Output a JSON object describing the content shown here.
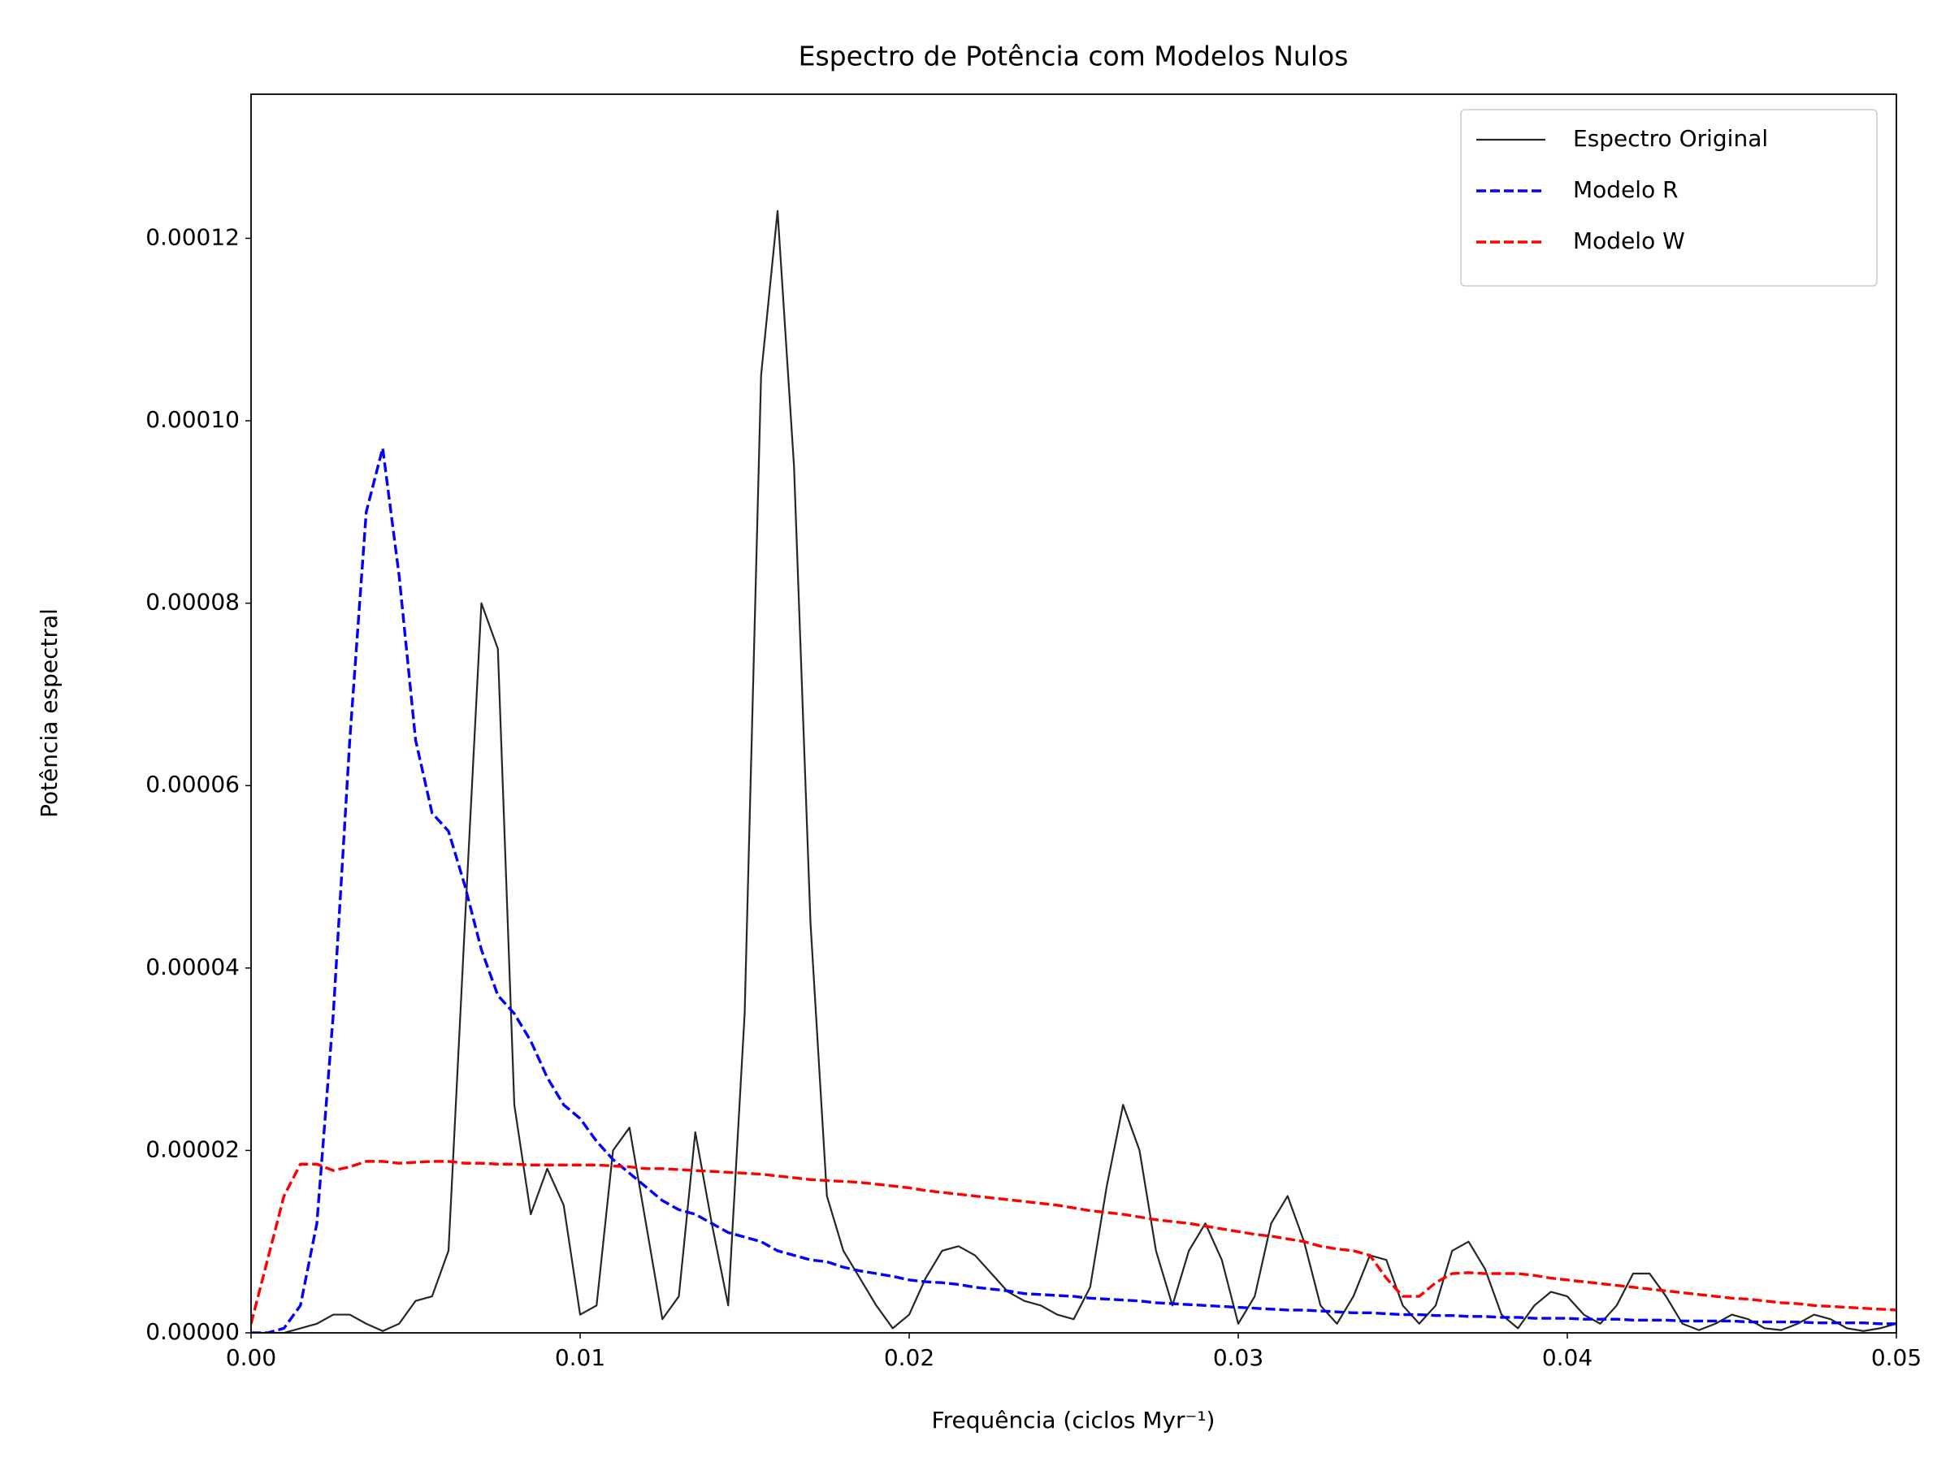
{
  "chart_data": {
    "type": "line",
    "title": "Espectro de Potência com Modelos Nulos",
    "x_label": "Frequência (ciclos Myr⁻¹)",
    "y_label": "Potência espectral",
    "x": [
      0,
      0.0005,
      0.001,
      0.0015,
      0.002,
      0.0025,
      0.003,
      0.0035,
      0.004,
      0.0045,
      0.005,
      0.0055,
      0.006,
      0.0065,
      0.007,
      0.0075,
      0.008,
      0.0085,
      0.009,
      0.0095,
      0.01,
      0.0105,
      0.011,
      0.0115,
      0.012,
      0.0125,
      0.013,
      0.0135,
      0.014,
      0.0145,
      0.015,
      0.0155,
      0.016,
      0.0165,
      0.017,
      0.0175,
      0.018,
      0.0185,
      0.019,
      0.0195,
      0.02,
      0.0205,
      0.021,
      0.0215,
      0.022,
      0.0225,
      0.023,
      0.0235,
      0.024,
      0.0245,
      0.025,
      0.0255,
      0.026,
      0.0265,
      0.027,
      0.0275,
      0.028,
      0.0285,
      0.029,
      0.0295,
      0.03,
      0.0305,
      0.031,
      0.0315,
      0.032,
      0.0325,
      0.033,
      0.0335,
      0.034,
      0.0345,
      0.035,
      0.0355,
      0.036,
      0.0365,
      0.037,
      0.0375,
      0.038,
      0.0385,
      0.039,
      0.0395,
      0.04,
      0.0405,
      0.041,
      0.0415,
      0.042,
      0.0425,
      0.043,
      0.0435,
      0.044,
      0.0445,
      0.045,
      0.0455,
      0.046,
      0.0465,
      0.047,
      0.0475,
      0.048,
      0.0485,
      0.049,
      0.0495,
      0.05
    ],
    "series": [
      {
        "name": "Espectro Original",
        "color": "#262626",
        "style": "solid",
        "values": [
          0,
          0,
          0,
          5e-07,
          1e-06,
          2e-06,
          2e-06,
          1e-06,
          2e-07,
          1e-06,
          3.5e-06,
          4e-06,
          9e-06,
          4.5e-05,
          8e-05,
          7.5e-05,
          2.5e-05,
          1.3e-05,
          1.8e-05,
          1.4e-05,
          2e-06,
          3e-06,
          2e-05,
          2.25e-05,
          1.2e-05,
          1.5e-06,
          4e-06,
          2.2e-05,
          1.2e-05,
          3e-06,
          3.5e-05,
          0.000105,
          0.000123,
          9.5e-05,
          4.5e-05,
          1.5e-05,
          9e-06,
          6e-06,
          3e-06,
          5e-07,
          2e-06,
          6e-06,
          9e-06,
          9.5e-06,
          8.5e-06,
          6.5e-06,
          4.5e-06,
          3.5e-06,
          3e-06,
          2e-06,
          1.5e-06,
          5e-06,
          1.6e-05,
          2.5e-05,
          2e-05,
          9e-06,
          3e-06,
          9e-06,
          1.2e-05,
          8e-06,
          1e-06,
          4e-06,
          1.2e-05,
          1.5e-05,
          1e-05,
          3e-06,
          1e-06,
          4e-06,
          8.5e-06,
          8e-06,
          3e-06,
          1e-06,
          3e-06,
          9e-06,
          1e-05,
          7e-06,
          2e-06,
          5e-07,
          3e-06,
          4.5e-06,
          4e-06,
          2e-06,
          1e-06,
          3e-06,
          6.5e-06,
          6.5e-06,
          4e-06,
          1e-06,
          3e-07,
          1e-06,
          2e-06,
          1.5e-06,
          5e-07,
          3e-07,
          1e-06,
          2e-06,
          1.5e-06,
          5e-07,
          2e-07,
          5e-07,
          1e-06
        ]
      },
      {
        "name": "Modelo R",
        "color": "#0000ff",
        "style": "dashed",
        "values": [
          0,
          0,
          5e-07,
          3e-06,
          1.2e-05,
          3.5e-05,
          6.5e-05,
          9e-05,
          9.7e-05,
          8.3e-05,
          6.5e-05,
          5.7e-05,
          5.5e-05,
          4.9e-05,
          4.2e-05,
          3.7e-05,
          3.5e-05,
          3.2e-05,
          2.8e-05,
          2.5e-05,
          2.35e-05,
          2.1e-05,
          1.9e-05,
          1.75e-05,
          1.6e-05,
          1.45e-05,
          1.35e-05,
          1.3e-05,
          1.2e-05,
          1.1e-05,
          1.05e-05,
          1e-05,
          9e-06,
          8.5e-06,
          8e-06,
          7.8e-06,
          7.2e-06,
          6.8e-06,
          6.5e-06,
          6.2e-06,
          5.8e-06,
          5.6e-06,
          5.5e-06,
          5.3e-06,
          5e-06,
          4.8e-06,
          4.6e-06,
          4.3e-06,
          4.2e-06,
          4.1e-06,
          4e-06,
          3.8e-06,
          3.7e-06,
          3.6e-06,
          3.5e-06,
          3.3e-06,
          3.2e-06,
          3.1e-06,
          3e-06,
          2.9e-06,
          2.8e-06,
          2.7e-06,
          2.6e-06,
          2.5e-06,
          2.5e-06,
          2.4e-06,
          2.3e-06,
          2.2e-06,
          2.2e-06,
          2.1e-06,
          2e-06,
          2e-06,
          1.9e-06,
          1.9e-06,
          1.8e-06,
          1.8e-06,
          1.7e-06,
          1.7e-06,
          1.6e-06,
          1.6e-06,
          1.6e-06,
          1.5e-06,
          1.5e-06,
          1.5e-06,
          1.4e-06,
          1.4e-06,
          1.4e-06,
          1.3e-06,
          1.3e-06,
          1.3e-06,
          1.3e-06,
          1.2e-06,
          1.2e-06,
          1.2e-06,
          1.2e-06,
          1.1e-06,
          1.1e-06,
          1.1e-06,
          1.1e-06,
          1e-06,
          1e-06
        ]
      },
      {
        "name": "Modelo W",
        "color": "#ff0000",
        "style": "dashed",
        "values": [
          1e-06,
          8e-06,
          1.5e-05,
          1.85e-05,
          1.85e-05,
          1.78e-05,
          1.82e-05,
          1.88e-05,
          1.88e-05,
          1.86e-05,
          1.87e-05,
          1.88e-05,
          1.88e-05,
          1.86e-05,
          1.86e-05,
          1.85e-05,
          1.85e-05,
          1.84e-05,
          1.84e-05,
          1.84e-05,
          1.84e-05,
          1.84e-05,
          1.83e-05,
          1.82e-05,
          1.8e-05,
          1.8e-05,
          1.79e-05,
          1.78e-05,
          1.77e-05,
          1.76e-05,
          1.75e-05,
          1.74e-05,
          1.72e-05,
          1.7e-05,
          1.68e-05,
          1.67e-05,
          1.66e-05,
          1.65e-05,
          1.63e-05,
          1.61e-05,
          1.59e-05,
          1.56e-05,
          1.54e-05,
          1.52e-05,
          1.5e-05,
          1.48e-05,
          1.46e-05,
          1.44e-05,
          1.42e-05,
          1.4e-05,
          1.37e-05,
          1.34e-05,
          1.32e-05,
          1.3e-05,
          1.27e-05,
          1.24e-05,
          1.22e-05,
          1.2e-05,
          1.17e-05,
          1.14e-05,
          1.11e-05,
          1.08e-05,
          1.06e-05,
          1.03e-05,
          1e-05,
          9.5e-06,
          9.2e-06,
          9e-06,
          8.5e-06,
          6e-06,
          4e-06,
          4e-06,
          5.5e-06,
          6.5e-06,
          6.6e-06,
          6.5e-06,
          6.5e-06,
          6.5e-06,
          6.3e-06,
          6e-06,
          5.8e-06,
          5.6e-06,
          5.4e-06,
          5.2e-06,
          5e-06,
          4.8e-06,
          4.6e-06,
          4.4e-06,
          4.2e-06,
          4e-06,
          3.8e-06,
          3.7e-06,
          3.5e-06,
          3.3e-06,
          3.2e-06,
          3e-06,
          2.9e-06,
          2.8e-06,
          2.7e-06,
          2.6e-06,
          2.5e-06
        ]
      }
    ],
    "xlim": [
      0,
      0.05
    ],
    "xticks": [
      {
        "value": 0,
        "label": "0.00"
      },
      0.01,
      0.02,
      0.03,
      0.04,
      0.05
    ],
    "ylim": [
      0,
      0.0001358
    ],
    "yticks": [
      {
        "value": 0,
        "label": "0.00000"
      },
      {
        "value": 2e-05,
        "label": "0.00002"
      },
      {
        "value": 4e-05,
        "label": "0.00004"
      },
      {
        "value": 6e-05,
        "label": "0.00006"
      },
      {
        "value": 8e-05,
        "label": "0.00008"
      },
      {
        "value": 0.0001,
        "label": "0.00010"
      },
      {
        "value": 0.00012,
        "label": "0.00012"
      }
    ],
    "grid": false,
    "legend": "upper right"
  }
}
